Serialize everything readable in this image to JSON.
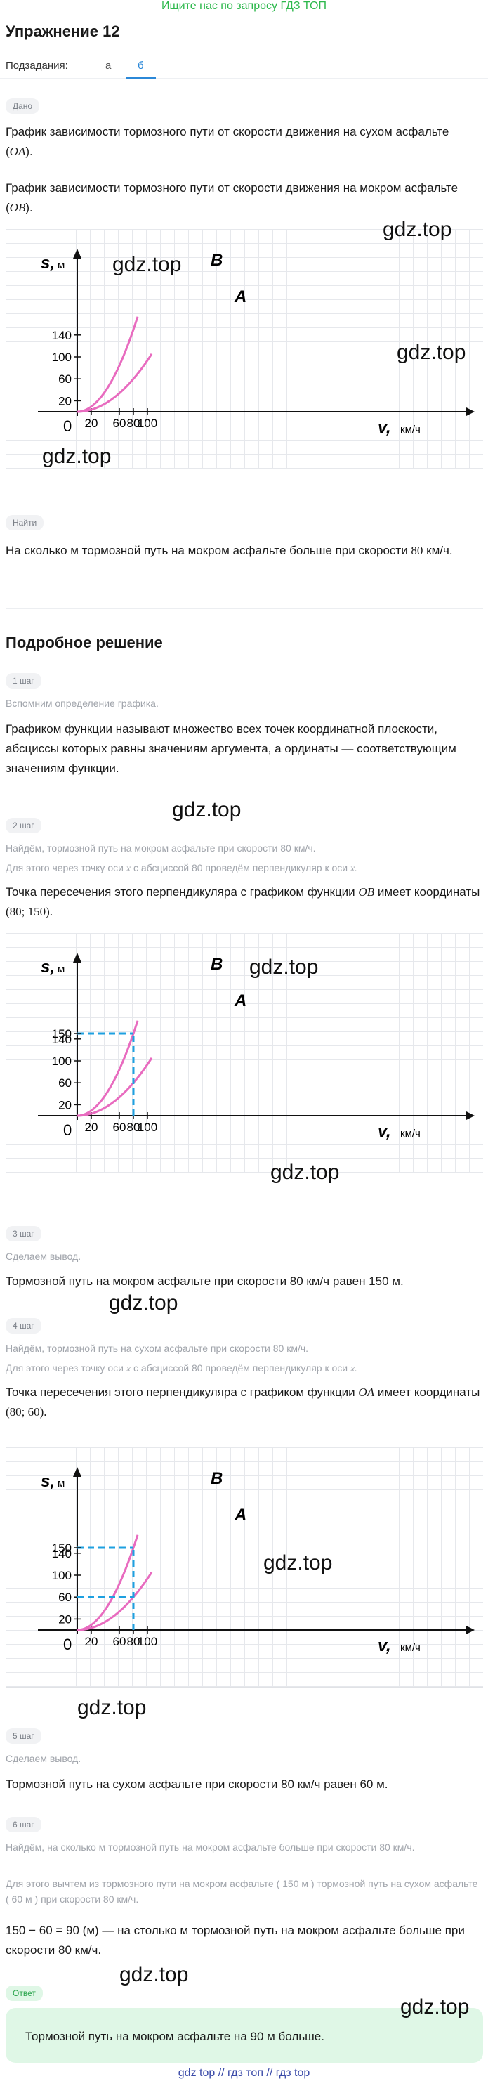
{
  "banner": "Ищите нас по запросу ГДЗ ТОП",
  "title": "Упражнение 12",
  "subtasks": {
    "label": "Подзадания:",
    "tabs": [
      "а",
      "б"
    ],
    "active": "б"
  },
  "given": {
    "pill": "Дано",
    "line1a": "График зависимости тормозного пути от скорости движения на сухом асфальте (",
    "line1m": "OA",
    "line1b": ").",
    "line2a": "График зависимости тормозного пути от скорости движения на мокром асфальте (",
    "line2m": "OB",
    "line2b": ")."
  },
  "graph_labels": {
    "s": "s,",
    "s_unit": "м",
    "v": "v,",
    "v_unit": "км/ч",
    "origin": "0",
    "curveA": "A",
    "curveB": "B",
    "y_ticks": [
      "20",
      "60",
      "100",
      "140"
    ],
    "x_ticks": [
      "20",
      "60",
      "80",
      "100"
    ],
    "y150": "150"
  },
  "find": {
    "pill": "Найти",
    "text_a": "На сколько м тормозной путь на мокром асфальте больше при скорости",
    "speed": "80",
    "text_b": "км/ч."
  },
  "solution_title": "Подробное решение",
  "step1": {
    "pill": "1 шаг",
    "note": "Вспомним определение графика.",
    "text": "Графиком функции называют множество всех точек координатной плоскости, абсциссы которых равны значениям аргумента, а ординаты — соответствующим значениям функции."
  },
  "step2": {
    "pill": "2 шаг",
    "note1": "Найдём, тормозной путь на мокром асфальте при скорости 80 км/ч.",
    "note2a": "Для этого через точку оси",
    "note2x": "x",
    "note2b": "с абсциссой 80 проведём перпендикуляр к оси",
    "note2x2": "x.",
    "text_a": "Точка пересечения этого перпендикуляра с графиком функции",
    "curve": "OB",
    "text_b": "имеет координаты",
    "coords": "(80; 150)."
  },
  "step3": {
    "pill": "3 шаг",
    "note": "Сделаем вывод.",
    "text": "Тормозной путь на мокром асфальте при скорости 80 км/ч равен 150 м."
  },
  "step4": {
    "pill": "4 шаг",
    "note1": "Найдём, тормозной путь на сухом асфальте при скорости 80 км/ч.",
    "note2a": "Для этого через точку оси",
    "note2x": "x",
    "note2b": "с абсциссой 80 проведём перпендикуляр к оси",
    "note2x2": "x.",
    "text_a": "Точка пересечения этого перпендикуляра с графиком функции",
    "curve": "OA",
    "text_b": "имеет координаты",
    "coords": "(80; 60)."
  },
  "step5": {
    "pill": "5 шаг",
    "note": "Сделаем вывод.",
    "text": "Тормозной путь на сухом асфальте при скорости 80 км/ч равен 60 м."
  },
  "step6": {
    "pill": "6 шаг",
    "note1": "Найдём, на сколько м тормозной путь на мокром асфальте больше при скорости 80 км/ч.",
    "note2": "Для этого вычтем из тормозного пути на мокром асфальте ( 150 м ) тормозной путь на сухом асфальте ( 60 м ) при скорости 80 км/ч.",
    "text": "150 − 60 = 90 (м) — на столько м тормозной путь на мокром асфальте больше при скорости 80 км/ч."
  },
  "answer": {
    "pill": "Ответ",
    "text": "Тормозной путь на мокром асфальте на 90 м больше."
  },
  "watermark": "gdz.top",
  "footer": "gdz top  //  гдз топ  //  гдз top",
  "colors": {
    "curve": "#e86bbf",
    "guide": "#1ea0e0",
    "link": "#2b88d8",
    "banner": "#2db84c"
  }
}
